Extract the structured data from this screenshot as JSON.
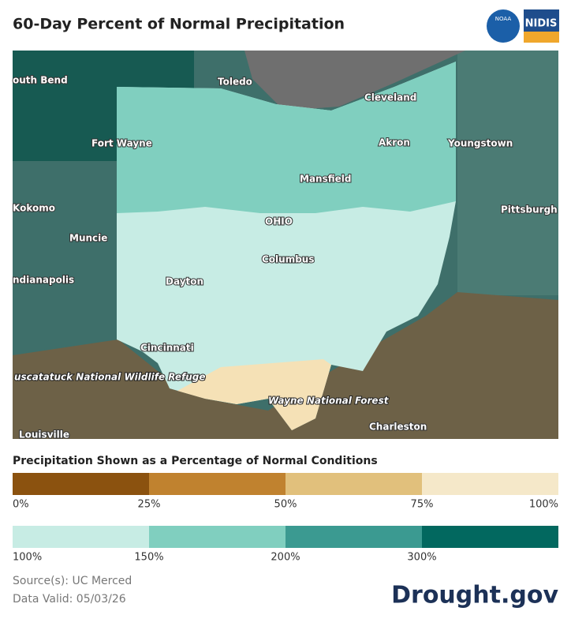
{
  "header": {
    "title": "60-Day Percent of Normal Precipitation",
    "logos": {
      "noaa": "NOAA",
      "nidis": "NIDIS"
    }
  },
  "map": {
    "labels": [
      "outh Bend",
      "Toledo",
      "Cleveland",
      "Fort Wayne",
      "Akron",
      "Youngstown",
      "Mansfield",
      "Kokomo",
      "OHIO",
      "Pittsburgh",
      "Muncie",
      "Columbus",
      "ndianapolis",
      "Dayton",
      "Cincinnati",
      "uscatatuck National Wildlife Refuge",
      "Wayne National Forest",
      "Charleston",
      "Louisville"
    ]
  },
  "legend": {
    "title": "Precipitation Shown as a Percentage of Normal Conditions",
    "dry": {
      "colors": [
        "#8b520f",
        "#c0822f",
        "#e1c07c",
        "#f5e8c9"
      ],
      "labels": [
        "0%",
        "25%",
        "50%",
        "75%",
        "100%"
      ]
    },
    "wet": {
      "colors": [
        "#c7ece4",
        "#80cfbf",
        "#3b9a91",
        "#02685f"
      ],
      "labels": [
        "100%",
        "150%",
        "200%",
        "300%"
      ]
    }
  },
  "footer": {
    "source": "Source(s): UC Merced",
    "date": "Data Valid: 05/03/26",
    "brand": "Drought.gov"
  }
}
